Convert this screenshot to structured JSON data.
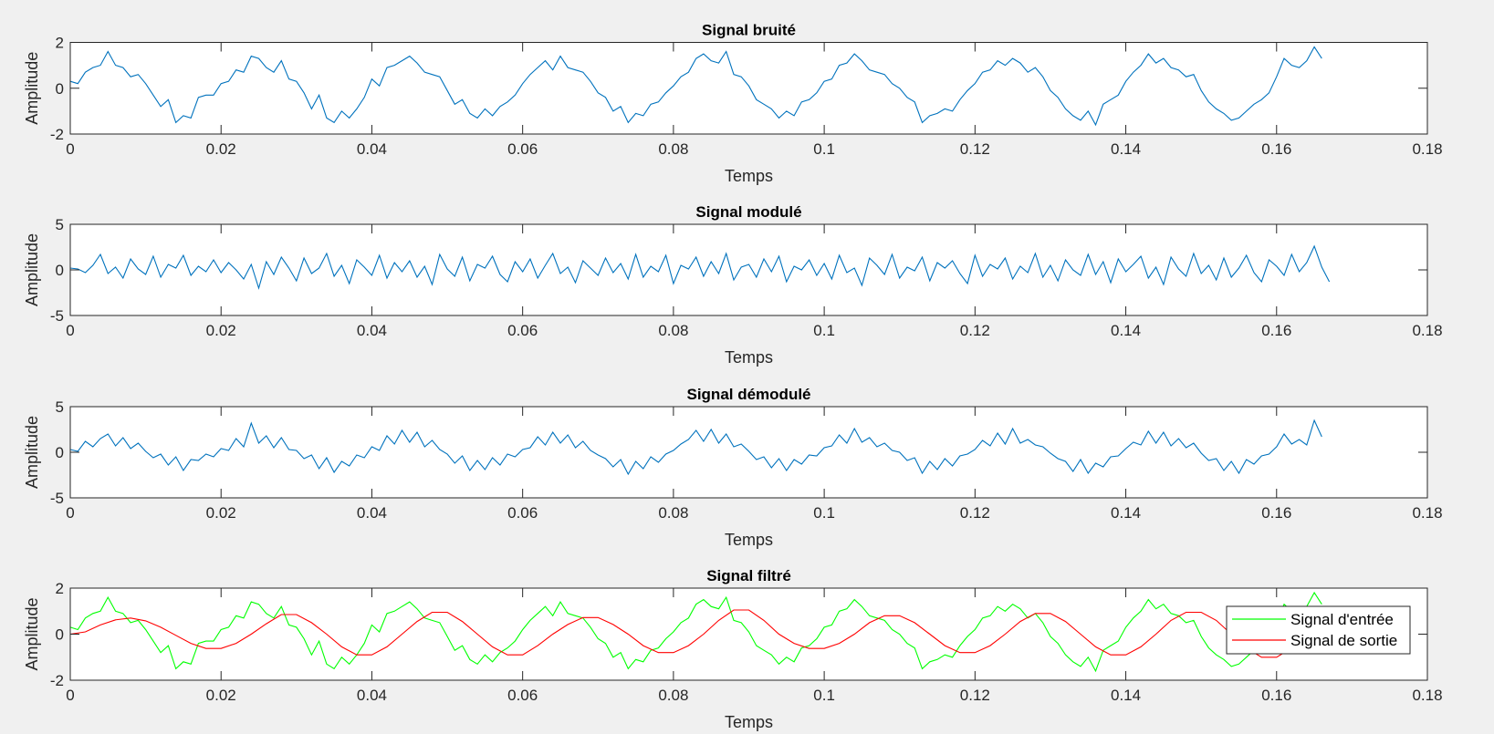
{
  "chart_data": [
    {
      "type": "line",
      "title": "Signal bruité",
      "xlabel": "Temps",
      "ylabel": "Amplitude",
      "xlim": [
        0,
        0.18
      ],
      "ylim": [
        -2,
        2
      ],
      "xticks": [
        "0",
        "0.02",
        "0.04",
        "0.06",
        "0.08",
        "0.1",
        "0.12",
        "0.14",
        "0.16",
        "0.18"
      ],
      "yticks": [
        "-2",
        "0",
        "2"
      ],
      "grid": false,
      "x_start": 0,
      "x_step": 0.001,
      "series": [
        {
          "color": "#0072BD",
          "values": [
            0.3,
            0.2,
            0.7,
            0.9,
            1.0,
            1.6,
            1.0,
            0.9,
            0.5,
            0.6,
            0.2,
            -0.3,
            -0.8,
            -0.5,
            -1.5,
            -1.2,
            -1.3,
            -0.4,
            -0.3,
            -0.3,
            0.2,
            0.3,
            0.8,
            0.7,
            1.4,
            1.3,
            0.9,
            0.7,
            1.2,
            0.4,
            0.3,
            -0.2,
            -0.9,
            -0.3,
            -1.3,
            -1.5,
            -1.0,
            -1.3,
            -0.9,
            -0.4,
            0.4,
            0.1,
            0.9,
            1.0,
            1.2,
            1.4,
            1.1,
            0.7,
            0.6,
            0.5,
            -0.1,
            -0.7,
            -0.5,
            -1.1,
            -1.3,
            -0.9,
            -1.2,
            -0.8,
            -0.6,
            -0.3,
            0.2,
            0.6,
            0.9,
            1.2,
            0.8,
            1.4,
            0.9,
            0.8,
            0.7,
            0.3,
            -0.2,
            -0.4,
            -1.0,
            -0.8,
            -1.5,
            -1.1,
            -1.2,
            -0.7,
            -0.6,
            -0.2,
            0.1,
            0.5,
            0.7,
            1.3,
            1.5,
            1.2,
            1.1,
            1.6,
            0.6,
            0.5,
            0.1,
            -0.5,
            -0.7,
            -0.9,
            -1.3,
            -1.0,
            -1.2,
            -0.6,
            -0.5,
            -0.2,
            0.3,
            0.4,
            1.0,
            1.1,
            1.5,
            1.2,
            0.8,
            0.7,
            0.6,
            0.2,
            0.0,
            -0.4,
            -0.6,
            -1.5,
            -1.2,
            -1.1,
            -0.9,
            -1.0,
            -0.5,
            -0.1,
            0.2,
            0.7,
            0.8,
            1.2,
            1.0,
            1.3,
            1.1,
            0.7,
            0.9,
            0.5,
            -0.1,
            -0.4,
            -0.9,
            -1.2,
            -1.4,
            -1.0,
            -1.6,
            -0.7,
            -0.5,
            -0.3,
            0.3,
            0.7,
            1.0,
            1.5,
            1.1,
            1.3,
            0.9,
            0.8,
            0.5,
            0.6,
            -0.1,
            -0.6,
            -0.9,
            -1.1,
            -1.4,
            -1.3,
            -1.0,
            -0.7,
            -0.5,
            -0.2,
            0.5,
            1.3,
            1.0,
            0.9,
            1.2,
            1.8,
            1.3
          ]
        }
      ]
    },
    {
      "type": "line",
      "title": "Signal modulé",
      "xlabel": "Temps",
      "ylabel": "Amplitude",
      "xlim": [
        0,
        0.18
      ],
      "ylim": [
        -5,
        5
      ],
      "xticks": [
        "0",
        "0.02",
        "0.04",
        "0.06",
        "0.08",
        "0.1",
        "0.12",
        "0.14",
        "0.16",
        "0.18"
      ],
      "yticks": [
        "-5",
        "0",
        "5"
      ],
      "grid": false,
      "x_start": 0,
      "x_step": 0.001,
      "series": [
        {
          "color": "#0072BD",
          "values": [
            0.2,
            0.1,
            -0.3,
            0.5,
            1.7,
            -0.4,
            0.3,
            -0.9,
            1.2,
            0.1,
            -0.5,
            1.5,
            -0.8,
            0.6,
            0.2,
            1.6,
            -0.6,
            0.4,
            -0.2,
            1.1,
            -0.3,
            0.8,
            0.0,
            -1.0,
            0.6,
            -2.0,
            0.9,
            -0.5,
            1.4,
            0.2,
            -1.2,
            1.3,
            -0.4,
            0.2,
            1.8,
            -0.7,
            0.5,
            -1.5,
            1.1,
            0.3,
            -0.6,
            1.6,
            -0.9,
            0.8,
            -0.2,
            1.0,
            -0.8,
            0.4,
            -1.6,
            1.7,
            0.1,
            -0.7,
            1.4,
            -1.2,
            0.6,
            0.2,
            1.5,
            -0.5,
            -1.3,
            0.9,
            -0.2,
            1.2,
            -0.9,
            0.5,
            1.8,
            -0.4,
            0.3,
            -1.4,
            1.0,
            0.2,
            -0.6,
            1.3,
            -0.3,
            0.7,
            -1.0,
            1.7,
            -0.8,
            0.4,
            -0.2,
            1.6,
            -1.5,
            0.5,
            0.1,
            1.4,
            -0.7,
            0.9,
            -0.4,
            1.8,
            -1.1,
            0.3,
            0.6,
            -0.8,
            1.2,
            -0.2,
            1.5,
            -1.3,
            0.4,
            0.0,
            1.1,
            -0.6,
            0.7,
            -1.0,
            1.6,
            -0.3,
            0.2,
            -1.7,
            1.3,
            0.5,
            -0.5,
            1.7,
            -0.9,
            0.3,
            -0.1,
            1.4,
            -1.2,
            0.8,
            0.2,
            1.0,
            -0.4,
            -1.5,
            1.6,
            -0.7,
            0.6,
            0.1,
            1.3,
            -1.0,
            0.4,
            -0.3,
            1.8,
            -0.8,
            0.5,
            -1.2,
            1.1,
            0.0,
            -0.6,
            1.7,
            -0.5,
            0.9,
            -1.4,
            1.2,
            -0.2,
            0.6,
            1.5,
            -0.9,
            0.3,
            -1.6,
            1.4,
            0.1,
            -0.7,
            1.8,
            -0.4,
            0.5,
            -1.1,
            1.3,
            -0.8,
            0.2,
            1.6,
            -0.3,
            -1.3,
            1.1,
            0.4,
            -0.6,
            1.7,
            -0.2,
            0.8,
            2.6,
            0.3,
            -1.3
          ]
        }
      ]
    },
    {
      "type": "line",
      "title": "Signal démodulé",
      "xlabel": "Temps",
      "ylabel": "Amplitude",
      "xlim": [
        0,
        0.18
      ],
      "ylim": [
        -5,
        5
      ],
      "xticks": [
        "0",
        "0.02",
        "0.04",
        "0.06",
        "0.08",
        "0.1",
        "0.12",
        "0.14",
        "0.16",
        "0.18"
      ],
      "yticks": [
        "-5",
        "0",
        "5"
      ],
      "grid": false,
      "x_start": 0,
      "x_step": 0.001,
      "series": [
        {
          "color": "#0072BD",
          "values": [
            0.3,
            0.1,
            1.2,
            0.6,
            1.5,
            2.0,
            0.7,
            1.6,
            0.4,
            1.0,
            0.1,
            -0.6,
            -0.2,
            -1.4,
            -0.5,
            -2.0,
            -0.8,
            -0.9,
            -0.2,
            -0.5,
            0.4,
            0.2,
            1.5,
            0.6,
            3.2,
            1.0,
            1.8,
            0.5,
            1.6,
            0.3,
            0.2,
            -0.7,
            -0.3,
            -1.8,
            -0.6,
            -2.2,
            -1.0,
            -1.5,
            -0.3,
            -0.6,
            0.6,
            0.2,
            1.8,
            0.9,
            2.4,
            1.1,
            2.2,
            0.6,
            1.3,
            0.3,
            -0.2,
            -1.2,
            -0.4,
            -2.0,
            -0.9,
            -1.9,
            -0.6,
            -1.4,
            -0.2,
            -0.5,
            0.3,
            0.5,
            1.7,
            0.8,
            2.2,
            1.0,
            1.9,
            0.5,
            1.2,
            0.2,
            -0.3,
            -0.7,
            -1.6,
            -0.8,
            -2.4,
            -1.0,
            -1.8,
            -0.5,
            -1.1,
            -0.2,
            0.2,
            0.9,
            1.4,
            2.4,
            1.2,
            2.5,
            1.0,
            2.0,
            0.6,
            0.9,
            0.1,
            -0.8,
            -0.5,
            -1.7,
            -0.7,
            -2.0,
            -0.8,
            -1.3,
            -0.3,
            -0.4,
            0.5,
            0.7,
            1.9,
            1.0,
            2.6,
            1.1,
            1.6,
            0.6,
            1.0,
            0.2,
            0.0,
            -0.9,
            -0.6,
            -2.3,
            -1.0,
            -1.9,
            -0.7,
            -1.5,
            -0.4,
            -0.2,
            0.3,
            1.3,
            0.7,
            2.1,
            0.9,
            2.6,
            1.0,
            1.4,
            0.8,
            0.6,
            -0.1,
            -0.7,
            -1.0,
            -2.1,
            -0.8,
            -2.3,
            -1.2,
            -1.6,
            -0.5,
            -0.4,
            0.4,
            1.1,
            0.8,
            2.3,
            1.0,
            2.2,
            0.7,
            1.5,
            0.5,
            1.0,
            -0.1,
            -0.9,
            -0.7,
            -2.0,
            -1.0,
            -2.3,
            -0.8,
            -1.3,
            -0.4,
            -0.2,
            0.6,
            2.0,
            0.9,
            1.4,
            0.8,
            3.5,
            1.7
          ]
        }
      ]
    },
    {
      "type": "line",
      "title": "Signal filtré",
      "xlabel": "Temps",
      "ylabel": "Amplitude",
      "xlim": [
        0,
        0.18
      ],
      "ylim": [
        -2,
        2
      ],
      "xticks": [
        "0",
        "0.02",
        "0.04",
        "0.06",
        "0.08",
        "0.1",
        "0.12",
        "0.14",
        "0.16",
        "0.18"
      ],
      "yticks": [
        "-2",
        "0",
        "2"
      ],
      "grid": false,
      "legend": {
        "placement": "right",
        "entries": [
          "Signal d'entrée",
          "Signal de sortie"
        ]
      },
      "series": [
        {
          "name": "Signal d'entrée",
          "color": "#00FF00",
          "x_start": 0,
          "x_step": 0.001,
          "values": "same-as-signal-bruite"
        },
        {
          "name": "Signal de sortie",
          "color": "#FF0000",
          "x_start": 0,
          "x_step": 0.002,
          "values": [
            0,
            0.1,
            0.4,
            0.62,
            0.7,
            0.58,
            0.3,
            -0.05,
            -0.4,
            -0.62,
            -0.62,
            -0.4,
            0,
            0.45,
            0.85,
            0.85,
            0.5,
            0,
            -0.55,
            -0.9,
            -0.9,
            -0.55,
            0,
            0.55,
            0.95,
            0.95,
            0.55,
            0,
            -0.55,
            -0.9,
            -0.9,
            -0.5,
            0,
            0.42,
            0.72,
            0.72,
            0.42,
            0,
            -0.5,
            -0.8,
            -0.8,
            -0.5,
            0,
            0.6,
            1.05,
            1.05,
            0.6,
            0,
            -0.4,
            -0.62,
            -0.62,
            -0.4,
            0,
            0.5,
            0.8,
            0.8,
            0.5,
            0,
            -0.5,
            -0.8,
            -0.8,
            -0.5,
            0,
            0.55,
            0.9,
            0.9,
            0.55,
            0,
            -0.55,
            -0.9,
            -0.9,
            -0.55,
            0,
            0.6,
            0.95,
            0.95,
            0.6,
            0,
            -0.6,
            -1.0,
            -1.0,
            -0.6,
            0,
            0.3
          ]
        }
      ]
    }
  ]
}
